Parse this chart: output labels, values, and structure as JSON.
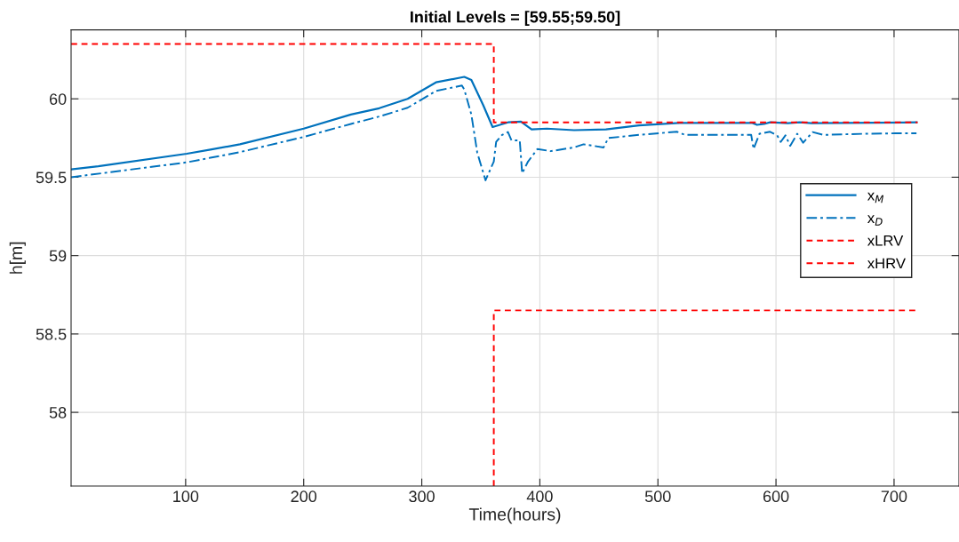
{
  "chart_data": {
    "type": "line",
    "title": "Initial Levels = [59.55;59.50]",
    "xlabel": "Time(hours)",
    "ylabel": "h[m]",
    "xlim": [
      3,
      755
    ],
    "ylim": [
      57.53,
      60.44
    ],
    "xticks": [
      100,
      200,
      300,
      400,
      500,
      600,
      700
    ],
    "yticks": [
      58,
      58.5,
      59,
      59.5,
      60
    ],
    "grid": true,
    "legend": "right",
    "marker": "none",
    "series": [
      {
        "name": "x$_{M}$",
        "color": "#0072bd",
        "line_style": "solid",
        "x": [
          3,
          26,
          101,
          121,
          146,
          200,
          240,
          264,
          288,
          312,
          336,
          342,
          352,
          360,
          373,
          384,
          393,
          406,
          429,
          456,
          484,
          518,
          580,
          584,
          590,
          595,
          610,
          620,
          630,
          719
        ],
        "values": [
          59.55,
          59.57,
          59.65,
          59.676,
          59.71,
          59.81,
          59.9,
          59.94,
          60.0,
          60.105,
          60.14,
          60.12,
          59.96,
          59.82,
          59.85,
          59.855,
          59.805,
          59.81,
          59.8,
          59.805,
          59.83,
          59.846,
          59.846,
          59.834,
          59.84,
          59.85,
          59.845,
          59.85,
          59.845,
          59.85
        ]
      },
      {
        "name": "x$_{D}$",
        "color": "#0072bd",
        "line_style": "dashdot",
        "x": [
          3,
          101,
          121,
          146,
          200,
          240,
          264,
          288,
          312,
          334,
          336,
          342,
          347,
          354,
          361,
          363,
          368,
          373,
          376,
          383,
          385,
          390,
          398,
          409,
          429,
          437,
          454,
          458,
          484,
          516,
          523,
          579,
          581,
          586,
          595,
          601,
          604,
          608,
          612,
          618,
          623,
          631,
          640,
          675,
          701,
          719
        ],
        "values": [
          59.5,
          59.595,
          59.624,
          59.66,
          59.757,
          59.84,
          59.887,
          59.943,
          60.05,
          60.085,
          60.06,
          59.9,
          59.656,
          59.48,
          59.6,
          59.725,
          59.77,
          59.788,
          59.735,
          59.735,
          59.525,
          59.6,
          59.68,
          59.666,
          59.69,
          59.71,
          59.69,
          59.75,
          59.77,
          59.79,
          59.77,
          59.77,
          59.68,
          59.777,
          59.79,
          59.767,
          59.725,
          59.767,
          59.7,
          59.777,
          59.72,
          59.788,
          59.77,
          59.777,
          59.78,
          59.78
        ]
      },
      {
        "name": "xLRV",
        "color": "#ff0000",
        "line_style": "dashed",
        "x": [
          361,
          361,
          720
        ],
        "values": [
          57.53,
          58.65,
          58.65
        ]
      },
      {
        "name": "xHRV",
        "color": "#ff0000",
        "line_style": "dashed",
        "x": [
          3,
          361,
          361,
          720
        ],
        "values": [
          60.35,
          60.35,
          59.85,
          59.85
        ]
      }
    ]
  }
}
